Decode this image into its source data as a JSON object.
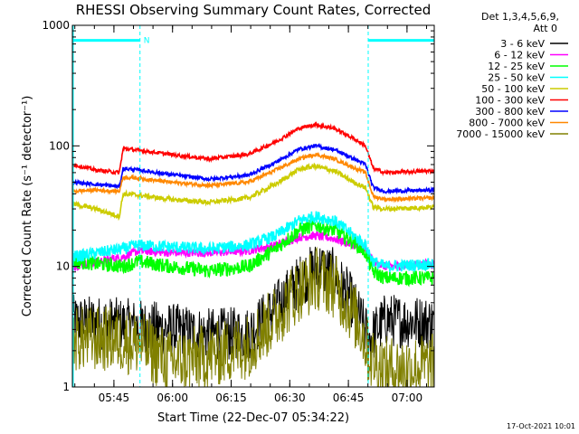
{
  "chart_data": {
    "type": "line",
    "title": "RHESSI Observing Summary Count Rates, Corrected",
    "xlabel": "Start Time (22-Dec-07 05:34:22)",
    "ylabel": "Corrected Count Rate (s⁻¹ detector⁻¹)",
    "y_scale": "log",
    "ylim": [
      1,
      1000
    ],
    "xlim_minutes_after_0534_22": [
      0,
      92.6
    ],
    "x_ticks": [
      {
        "label": "05:45",
        "minutes": 10.63
      },
      {
        "label": "06:00",
        "minutes": 25.63
      },
      {
        "label": "06:15",
        "minutes": 40.63
      },
      {
        "label": "06:30",
        "minutes": 55.63
      },
      {
        "label": "06:45",
        "minutes": 70.63
      },
      {
        "label": "07:00",
        "minutes": 85.63
      }
    ],
    "y_ticks": [
      {
        "label": "1",
        "value": 1
      },
      {
        "label": "10",
        "value": 10
      },
      {
        "label": "100",
        "value": 100
      },
      {
        "label": "1000",
        "value": 1000
      }
    ],
    "legend_header": [
      "Det 1,3,4,5,6,9,",
      "Att 0"
    ],
    "legend_position": "right",
    "timestamp": "17-Oct-2021 10:01",
    "flag_label": "N",
    "flag_color": "#00ffff",
    "flag_bars_y": 750,
    "flag_intervals_minutes": [
      [
        0,
        17.3
      ],
      [
        75.7,
        92.6
      ]
    ],
    "boundary_lines_minutes": [
      17.3,
      75.7,
      92.6
    ],
    "series": [
      {
        "name": "3 - 6 keV",
        "color": "#000000",
        "noise": 0.45,
        "points": [
          [
            0,
            3.5
          ],
          [
            8,
            3.4
          ],
          [
            12,
            3.3
          ],
          [
            17,
            3.2
          ],
          [
            25,
            3.0
          ],
          [
            35,
            2.7
          ],
          [
            45,
            2.8
          ],
          [
            52,
            4.5
          ],
          [
            58,
            7.5
          ],
          [
            63,
            10
          ],
          [
            67,
            8.5
          ],
          [
            71,
            5.5
          ],
          [
            74,
            3.5
          ],
          [
            76,
            2.5
          ],
          [
            80,
            3.6
          ],
          [
            92.6,
            3.4
          ]
        ]
      },
      {
        "name": "6 - 12 keV",
        "color": "#ff00ff",
        "noise": 0.07,
        "points": [
          [
            0,
            10
          ],
          [
            13,
            12
          ],
          [
            17,
            13.5
          ],
          [
            25,
            13
          ],
          [
            35,
            13
          ],
          [
            45,
            13.5
          ],
          [
            52,
            15
          ],
          [
            58,
            17.5
          ],
          [
            62,
            18
          ],
          [
            67,
            17
          ],
          [
            72,
            15
          ],
          [
            75,
            14
          ],
          [
            77,
            11
          ],
          [
            80,
            10
          ],
          [
            92.6,
            10.5
          ]
        ]
      },
      {
        "name": "12 - 25 keV",
        "color": "#00ff00",
        "noise": 0.12,
        "points": [
          [
            0,
            11
          ],
          [
            13,
            10
          ],
          [
            17,
            11
          ],
          [
            25,
            10
          ],
          [
            35,
            9.2
          ],
          [
            45,
            10
          ],
          [
            52,
            14
          ],
          [
            58,
            20
          ],
          [
            62,
            22
          ],
          [
            67,
            20
          ],
          [
            72,
            16
          ],
          [
            75,
            13
          ],
          [
            77,
            9
          ],
          [
            80,
            8
          ],
          [
            92.6,
            8
          ]
        ]
      },
      {
        "name": "25 - 50 keV",
        "color": "#00ffff",
        "noise": 0.1,
        "points": [
          [
            0,
            12
          ],
          [
            13,
            14
          ],
          [
            17,
            15
          ],
          [
            25,
            14.5
          ],
          [
            35,
            14
          ],
          [
            45,
            15
          ],
          [
            52,
            18
          ],
          [
            58,
            24
          ],
          [
            62,
            26
          ],
          [
            67,
            24
          ],
          [
            72,
            18
          ],
          [
            75,
            15
          ],
          [
            77,
            11
          ],
          [
            80,
            10
          ],
          [
            92.6,
            10.5
          ]
        ]
      },
      {
        "name": "50 - 100 keV",
        "color": "#cccc00",
        "noise": 0.04,
        "points": [
          [
            0,
            33
          ],
          [
            6,
            30
          ],
          [
            12,
            26
          ],
          [
            13,
            40
          ],
          [
            17,
            39
          ],
          [
            25,
            36
          ],
          [
            35,
            34
          ],
          [
            45,
            37
          ],
          [
            52,
            48
          ],
          [
            58,
            64
          ],
          [
            62,
            68
          ],
          [
            67,
            62
          ],
          [
            72,
            50
          ],
          [
            75,
            45
          ],
          [
            77,
            31
          ],
          [
            80,
            30
          ],
          [
            92.6,
            31
          ]
        ]
      },
      {
        "name": "100 - 300 keV",
        "color": "#ff0000",
        "noise": 0.03,
        "points": [
          [
            0,
            70
          ],
          [
            6,
            63
          ],
          [
            12,
            60
          ],
          [
            13,
            95
          ],
          [
            17,
            92
          ],
          [
            25,
            85
          ],
          [
            35,
            78
          ],
          [
            45,
            85
          ],
          [
            52,
            108
          ],
          [
            58,
            140
          ],
          [
            62,
            150
          ],
          [
            67,
            140
          ],
          [
            72,
            115
          ],
          [
            75,
            100
          ],
          [
            77,
            65
          ],
          [
            80,
            60
          ],
          [
            92.6,
            62
          ]
        ]
      },
      {
        "name": "300 - 800 keV",
        "color": "#0000ff",
        "noise": 0.03,
        "points": [
          [
            0,
            50
          ],
          [
            6,
            48
          ],
          [
            12,
            46
          ],
          [
            13,
            65
          ],
          [
            17,
            63
          ],
          [
            25,
            58
          ],
          [
            35,
            53
          ],
          [
            45,
            57
          ],
          [
            52,
            73
          ],
          [
            58,
            94
          ],
          [
            62,
            100
          ],
          [
            67,
            93
          ],
          [
            72,
            78
          ],
          [
            75,
            70
          ],
          [
            77,
            45
          ],
          [
            80,
            42
          ],
          [
            92.6,
            43
          ]
        ]
      },
      {
        "name": "800 - 7000 keV",
        "color": "#ff8800",
        "noise": 0.03,
        "points": [
          [
            0,
            42
          ],
          [
            6,
            43
          ],
          [
            12,
            42
          ],
          [
            13,
            55
          ],
          [
            17,
            54
          ],
          [
            25,
            50
          ],
          [
            35,
            47
          ],
          [
            45,
            50
          ],
          [
            52,
            63
          ],
          [
            58,
            78
          ],
          [
            62,
            85
          ],
          [
            67,
            78
          ],
          [
            72,
            66
          ],
          [
            75,
            60
          ],
          [
            77,
            38
          ],
          [
            80,
            36
          ],
          [
            92.6,
            37
          ]
        ]
      },
      {
        "name": "7000 - 15000 keV",
        "color": "#808000",
        "noise": 0.55,
        "points": [
          [
            0,
            2.5
          ],
          [
            10,
            2.5
          ],
          [
            17,
            2.3
          ],
          [
            25,
            1.6
          ],
          [
            35,
            1.8
          ],
          [
            45,
            2.2
          ],
          [
            52,
            3.8
          ],
          [
            58,
            6.5
          ],
          [
            63,
            8
          ],
          [
            67,
            7
          ],
          [
            71,
            4.5
          ],
          [
            74,
            3
          ],
          [
            76,
            1.8
          ],
          [
            80,
            1.4
          ],
          [
            92.6,
            1.5
          ]
        ]
      }
    ]
  }
}
